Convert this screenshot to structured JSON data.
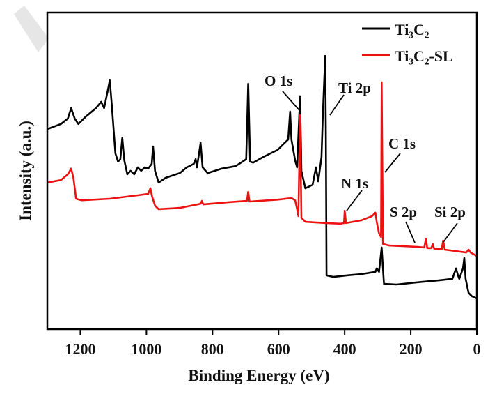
{
  "chart_data": {
    "type": "line",
    "title": "",
    "xlabel": "Binding Energy (eV)",
    "ylabel": "Intensity (a.u.)",
    "xlim": [
      1300,
      0
    ],
    "x_reversed": true,
    "ylim": [
      0,
      100
    ],
    "grid": false,
    "xticks": [
      1200,
      1000,
      800,
      600,
      400,
      200,
      0
    ],
    "xtick_labels": [
      "1200",
      "1000",
      "800",
      "600",
      "400",
      "200",
      "0"
    ],
    "legend_placement": "top-right",
    "series": [
      {
        "name": "Ti₃C₂",
        "color": "#000000",
        "points": [
          [
            1300,
            63.2
          ],
          [
            1259,
            64.8
          ],
          [
            1238,
            66.5
          ],
          [
            1228,
            69.8
          ],
          [
            1217,
            66.5
          ],
          [
            1206,
            64.8
          ],
          [
            1185,
            67.0
          ],
          [
            1153,
            69.8
          ],
          [
            1137,
            71.8
          ],
          [
            1128,
            69.8
          ],
          [
            1115,
            76.4
          ],
          [
            1111,
            78.6
          ],
          [
            1105,
            70.9
          ],
          [
            1094,
            55.5
          ],
          [
            1086,
            52.9
          ],
          [
            1079,
            53.7
          ],
          [
            1073,
            60.4
          ],
          [
            1067,
            53.3
          ],
          [
            1058,
            48.9
          ],
          [
            1048,
            50.0
          ],
          [
            1037,
            48.9
          ],
          [
            1026,
            51.1
          ],
          [
            1016,
            50.0
          ],
          [
            1005,
            51.1
          ],
          [
            995,
            50.7
          ],
          [
            984,
            52.2
          ],
          [
            980,
            57.7
          ],
          [
            974,
            50.0
          ],
          [
            963,
            46.3
          ],
          [
            942,
            47.8
          ],
          [
            899,
            49.3
          ],
          [
            878,
            51.1
          ],
          [
            857,
            52.2
          ],
          [
            851,
            53.7
          ],
          [
            847,
            51.1
          ],
          [
            836,
            58.8
          ],
          [
            830,
            51.1
          ],
          [
            815,
            49.3
          ],
          [
            772,
            50.7
          ],
          [
            730,
            51.5
          ],
          [
            709,
            52.9
          ],
          [
            698,
            53.7
          ],
          [
            692,
            77.5
          ],
          [
            686,
            52.9
          ],
          [
            677,
            52.6
          ],
          [
            646,
            54.4
          ],
          [
            603,
            56.6
          ],
          [
            582,
            58.8
          ],
          [
            571,
            59.9
          ],
          [
            565,
            68.7
          ],
          [
            561,
            59.9
          ],
          [
            550,
            53.3
          ],
          [
            544,
            51.1
          ],
          [
            535,
            73.6
          ],
          [
            531,
            50.0
          ],
          [
            519,
            44.5
          ],
          [
            497,
            45.6
          ],
          [
            487,
            51.1
          ],
          [
            480,
            46.7
          ],
          [
            470,
            54.4
          ],
          [
            466,
            67.6
          ],
          [
            459,
            86.3
          ],
          [
            457,
            64.3
          ],
          [
            455,
            17.0
          ],
          [
            434,
            16.5
          ],
          [
            392,
            17.0
          ],
          [
            349,
            17.4
          ],
          [
            307,
            18.1
          ],
          [
            303,
            19.2
          ],
          [
            296,
            18.1
          ],
          [
            288,
            25.8
          ],
          [
            281,
            14.3
          ],
          [
            243,
            14.1
          ],
          [
            180,
            14.8
          ],
          [
            116,
            15.4
          ],
          [
            74,
            15.9
          ],
          [
            63,
            19.2
          ],
          [
            57,
            17.0
          ],
          [
            53,
            15.9
          ],
          [
            42,
            19.2
          ],
          [
            38,
            22.5
          ],
          [
            34,
            15.9
          ],
          [
            25,
            11.5
          ],
          [
            15,
            10.4
          ],
          [
            0,
            9.7
          ]
        ]
      },
      {
        "name": "Ti₃C₂-SL",
        "color": "#ee1111",
        "points": [
          [
            1300,
            46.3
          ],
          [
            1259,
            47.1
          ],
          [
            1238,
            48.9
          ],
          [
            1228,
            50.7
          ],
          [
            1221,
            47.8
          ],
          [
            1213,
            41.2
          ],
          [
            1196,
            40.7
          ],
          [
            1111,
            41.2
          ],
          [
            1026,
            42.3
          ],
          [
            995,
            42.7
          ],
          [
            988,
            44.5
          ],
          [
            984,
            42.3
          ],
          [
            974,
            39.0
          ],
          [
            963,
            37.9
          ],
          [
            899,
            38.3
          ],
          [
            836,
            39.6
          ],
          [
            832,
            40.5
          ],
          [
            828,
            39.4
          ],
          [
            751,
            40.1
          ],
          [
            696,
            40.5
          ],
          [
            692,
            43.4
          ],
          [
            688,
            40.3
          ],
          [
            603,
            40.9
          ],
          [
            561,
            41.4
          ],
          [
            550,
            40.7
          ],
          [
            544,
            37.9
          ],
          [
            540,
            35.7
          ],
          [
            535,
            67.6
          ],
          [
            531,
            35.2
          ],
          [
            519,
            33.9
          ],
          [
            455,
            33.5
          ],
          [
            413,
            33.3
          ],
          [
            402,
            33.5
          ],
          [
            400,
            37.4
          ],
          [
            396,
            33.5
          ],
          [
            349,
            34.4
          ],
          [
            317,
            35.7
          ],
          [
            307,
            36.8
          ],
          [
            303,
            33.9
          ],
          [
            296,
            30.2
          ],
          [
            290,
            29.1
          ],
          [
            288,
            78.0
          ],
          [
            284,
            26.9
          ],
          [
            265,
            26.4
          ],
          [
            180,
            26.0
          ],
          [
            159,
            25.8
          ],
          [
            154,
            28.6
          ],
          [
            150,
            25.6
          ],
          [
            138,
            25.6
          ],
          [
            133,
            26.9
          ],
          [
            129,
            25.3
          ],
          [
            106,
            25.3
          ],
          [
            102,
            28.0
          ],
          [
            97,
            25.1
          ],
          [
            32,
            24.2
          ],
          [
            25,
            25.1
          ],
          [
            19,
            24.2
          ],
          [
            0,
            23.1
          ]
        ]
      }
    ],
    "annotations": [
      {
        "text": "O 1s",
        "energy": 531
      },
      {
        "text": "Ti 2p",
        "energy": 459
      },
      {
        "text": "N 1s",
        "energy": 400
      },
      {
        "text": "C 1s",
        "energy": 285
      },
      {
        "text": "S 2p",
        "energy": 190
      },
      {
        "text": "Si 2p",
        "energy": 102
      }
    ]
  }
}
